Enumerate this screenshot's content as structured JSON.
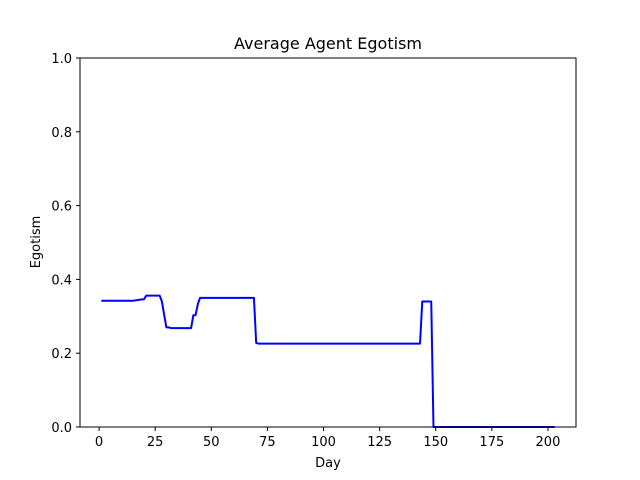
{
  "chart_data": {
    "type": "line",
    "title": "Average Agent Egotism",
    "xlabel": "Day",
    "ylabel": "Egotism",
    "xlim": [
      -8.5,
      212.5
    ],
    "ylim": [
      0.0,
      1.0
    ],
    "xticks": [
      0,
      25,
      50,
      75,
      100,
      125,
      150,
      175,
      200
    ],
    "yticks": [
      0.0,
      0.2,
      0.4,
      0.6,
      0.8,
      1.0
    ],
    "xtick_labels": [
      "0",
      "25",
      "50",
      "75",
      "100",
      "125",
      "150",
      "175",
      "200"
    ],
    "ytick_labels": [
      "0.0",
      "0.2",
      "0.4",
      "0.6",
      "0.8",
      "1.0"
    ],
    "grid": false,
    "legend": "none",
    "series": [
      {
        "color": "#0000ff",
        "x": [
          1,
          15,
          19,
          20,
          21,
          27,
          28,
          29,
          30,
          31,
          32,
          41,
          42,
          43,
          44,
          45,
          46,
          69,
          70,
          71,
          143,
          144,
          148,
          149,
          150,
          203
        ],
        "y": [
          0.342,
          0.342,
          0.346,
          0.346,
          0.356,
          0.356,
          0.34,
          0.304,
          0.27,
          0.27,
          0.268,
          0.268,
          0.303,
          0.303,
          0.333,
          0.35,
          0.35,
          0.35,
          0.228,
          0.226,
          0.226,
          0.34,
          0.34,
          0.0,
          0.0,
          0.0
        ]
      }
    ]
  }
}
